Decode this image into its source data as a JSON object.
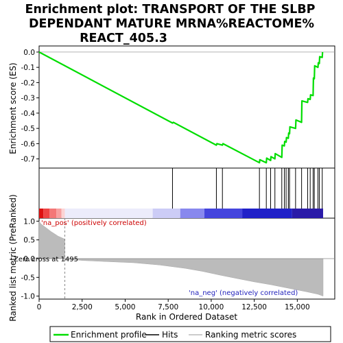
{
  "chart_data": {
    "type": "line",
    "title_lines": [
      "Enrichment plot: TRANSPORT OF THE SLBP",
      "DEPENDANT MATURE MRNA%REACTOME%",
      "REACT_405.3"
    ],
    "es_panel": {
      "ylabel": "Enrichment score (ES)",
      "ylim": [
        -0.76,
        0.04
      ],
      "yticks": [
        "0.0",
        "-0.1",
        "-0.2",
        "-0.3",
        "-0.4",
        "-0.5",
        "-0.6",
        "-0.7"
      ],
      "ytick_values": [
        0.0,
        -0.1,
        -0.2,
        -0.3,
        -0.4,
        -0.5,
        -0.6,
        -0.7
      ],
      "curve_color": "#00dd00",
      "points": [
        [
          0,
          0.0
        ],
        [
          7750,
          -0.465
        ],
        [
          7800,
          -0.46
        ],
        [
          10300,
          -0.61
        ],
        [
          10330,
          -0.6
        ],
        [
          10650,
          -0.61
        ],
        [
          10680,
          -0.6
        ],
        [
          12800,
          -0.725
        ],
        [
          12820,
          -0.705
        ],
        [
          13200,
          -0.725
        ],
        [
          13220,
          -0.695
        ],
        [
          13450,
          -0.71
        ],
        [
          13470,
          -0.685
        ],
        [
          13700,
          -0.7
        ],
        [
          13720,
          -0.665
        ],
        [
          14100,
          -0.69
        ],
        [
          14120,
          -0.61
        ],
        [
          14250,
          -0.615
        ],
        [
          14270,
          -0.585
        ],
        [
          14350,
          -0.59
        ],
        [
          14370,
          -0.56
        ],
        [
          14480,
          -0.565
        ],
        [
          14500,
          -0.53
        ],
        [
          14550,
          -0.535
        ],
        [
          14570,
          -0.49
        ],
        [
          14900,
          -0.5
        ],
        [
          14920,
          -0.445
        ],
        [
          15250,
          -0.46
        ],
        [
          15270,
          -0.32
        ],
        [
          15600,
          -0.33
        ],
        [
          15620,
          -0.305
        ],
        [
          15750,
          -0.31
        ],
        [
          15770,
          -0.28
        ],
        [
          15920,
          -0.285
        ],
        [
          15940,
          -0.17
        ],
        [
          15990,
          -0.175
        ],
        [
          16010,
          -0.09
        ],
        [
          16200,
          -0.1
        ],
        [
          16220,
          -0.07
        ],
        [
          16280,
          -0.075
        ],
        [
          16300,
          -0.03
        ],
        [
          16450,
          -0.035
        ],
        [
          16470,
          0.0
        ]
      ]
    },
    "hits_panel": {
      "hit_positions": [
        7750,
        10300,
        10650,
        12800,
        13200,
        13450,
        13700,
        14100,
        14250,
        14350,
        14480,
        14550,
        14900,
        15250,
        15600,
        15750,
        15920,
        15990,
        16200,
        16280,
        16450
      ]
    },
    "rank_panel": {
      "ylabel": "Ranked list metric (PreRanked)",
      "ylim": [
        -1.08,
        1.08
      ],
      "yticks": [
        "1.0",
        "0.5",
        "0.0",
        "-0.5",
        "-1.0"
      ],
      "ytick_values": [
        1.0,
        0.5,
        0.0,
        -0.5,
        -1.0
      ],
      "metric_curve": [
        [
          0,
          1.0
        ],
        [
          100,
          0.93
        ],
        [
          300,
          0.86
        ],
        [
          500,
          0.79
        ],
        [
          700,
          0.72
        ],
        [
          900,
          0.66
        ],
        [
          1100,
          0.6
        ],
        [
          1300,
          0.56
        ],
        [
          1494,
          0.52
        ],
        [
          1495,
          0.0
        ],
        [
          2500,
          -0.05
        ],
        [
          4000,
          -0.08
        ],
        [
          5500,
          -0.11
        ],
        [
          7000,
          -0.17
        ],
        [
          8500,
          -0.26
        ],
        [
          9500,
          -0.34
        ],
        [
          10500,
          -0.44
        ],
        [
          11500,
          -0.53
        ],
        [
          12500,
          -0.62
        ],
        [
          13500,
          -0.7
        ],
        [
          14500,
          -0.79
        ],
        [
          15500,
          -0.88
        ],
        [
          16200,
          -0.95
        ],
        [
          16500,
          -1.0
        ]
      ],
      "zero_cross": 1495,
      "annotation_pos": "'na_pos' (positively correlated)",
      "annotation_neg": "'na_neg' (negatively correlated)",
      "annotation_zero": "Zero cross at 1495"
    },
    "colorbar_segments": [
      {
        "from": 0,
        "to": 250,
        "color": "#dd1111"
      },
      {
        "from": 250,
        "to": 600,
        "color": "#ee4444"
      },
      {
        "from": 600,
        "to": 1000,
        "color": "#f47777"
      },
      {
        "from": 1000,
        "to": 1300,
        "color": "#f8a0a0"
      },
      {
        "from": 1300,
        "to": 1495,
        "color": "#fcd4d4"
      },
      {
        "from": 1495,
        "to": 6600,
        "color": "#ececfb"
      },
      {
        "from": 6600,
        "to": 8200,
        "color": "#ccccf6"
      },
      {
        "from": 8200,
        "to": 9600,
        "color": "#8888ee"
      },
      {
        "from": 9600,
        "to": 11800,
        "color": "#4444dd"
      },
      {
        "from": 11800,
        "to": 14700,
        "color": "#2020c8"
      },
      {
        "from": 14700,
        "to": 16500,
        "color": "#2a1aa8"
      }
    ],
    "x_axis": {
      "label": "Rank in Ordered Dataset",
      "xlim": [
        0,
        16500
      ],
      "ticks": [
        "0",
        "2,500",
        "5,000",
        "7,500",
        "10,000",
        "12,500",
        "15,000"
      ],
      "tick_values": [
        0,
        2500,
        5000,
        7500,
        10000,
        12500,
        15000
      ]
    },
    "legend": {
      "items": [
        {
          "label": "Enrichment profile",
          "color": "#00dd00"
        },
        {
          "label": "Hits",
          "color": "#000000"
        },
        {
          "label": "Ranking metric scores",
          "color": "#bbbbbb"
        }
      ]
    }
  }
}
